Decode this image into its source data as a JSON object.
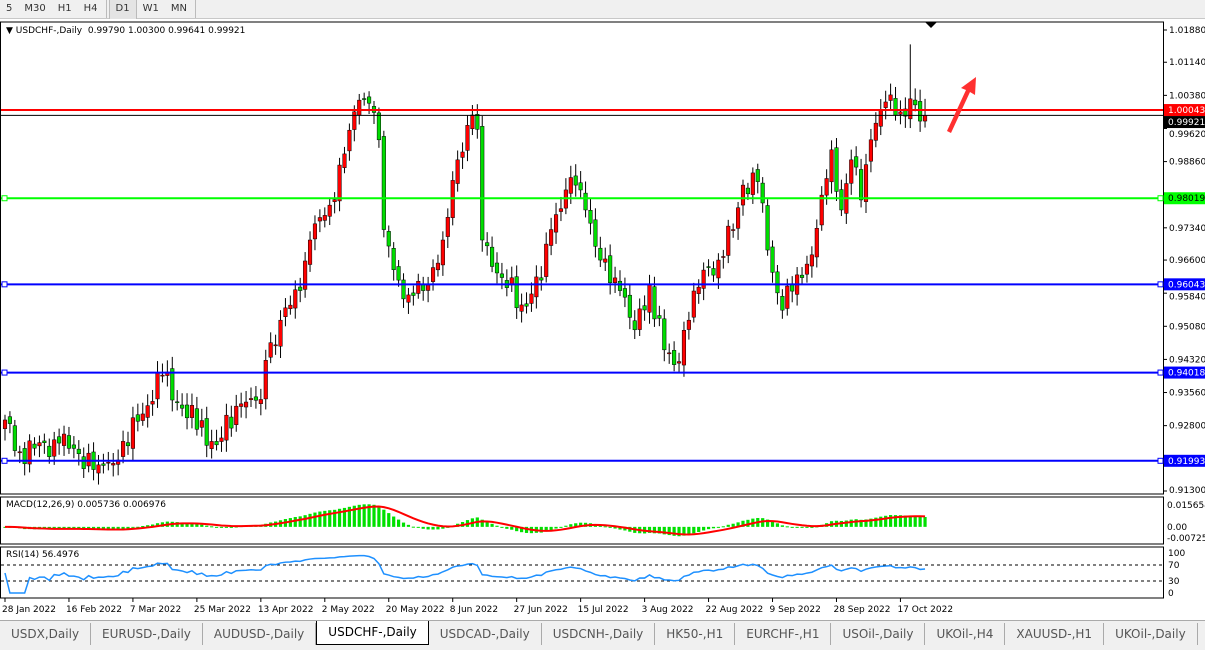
{
  "toolbar": {
    "timeframes": [
      "5",
      "M30",
      "H1",
      "H4",
      "D1",
      "W1",
      "MN"
    ],
    "active": "D1"
  },
  "header": {
    "symbol": "USDCHF-,Daily",
    "open": "0.99790",
    "high": "1.00300",
    "low": "0.99641",
    "close": "0.99921"
  },
  "indicators": {
    "macd_label": "MACD(12,26,9) 0.005736 0.006976",
    "rsi_label": "RSI(14) 56.4976"
  },
  "colors": {
    "bull": "#ff0000",
    "bear": "#00dd00",
    "macd_hist": "#00e000",
    "macd_signal": "#ff0000",
    "rsi": "#1e90ff",
    "resistance": "#ff0000",
    "support_green": "#00ff00",
    "support_blue": "#0000ff"
  },
  "chart_data": {
    "type": "candlestick",
    "price_axis": {
      "ticks": [
        "1.01880",
        "1.01140",
        "1.00380",
        "0.99620",
        "0.98860",
        "0.97340",
        "0.96600",
        "0.95840",
        "0.95080",
        "0.94320",
        "0.93560",
        "0.92800",
        "0.91300"
      ],
      "range": [
        0.913,
        1.0188
      ]
    },
    "date_ticks": [
      "28 Jan 2022",
      "16 Feb 2022",
      "7 Mar 2022",
      "25 Mar 2022",
      "13 Apr 2022",
      "2 May 2022",
      "20 May 2022",
      "8 Jun 2022",
      "27 Jun 2022",
      "15 Jul 2022",
      "3 Aug 2022",
      "22 Aug 2022",
      "9 Sep 2022",
      "28 Sep 2022",
      "17 Oct 2022"
    ],
    "levels": [
      {
        "price": "1.00043",
        "color": "#ff0000"
      },
      {
        "price": "0.98019",
        "color": "#00ff00"
      },
      {
        "price": "0.96043",
        "color": "#0000ff"
      },
      {
        "price": "0.94018",
        "color": "#0000ff"
      },
      {
        "price": "0.91993",
        "color": "#0000ff"
      }
    ],
    "current_price": "0.99921",
    "close_waypoints": [
      [
        0,
        0.9293
      ],
      [
        3,
        0.922
      ],
      [
        11,
        0.924
      ],
      [
        19,
        0.919
      ],
      [
        23,
        0.9201
      ],
      [
        27,
        0.929
      ],
      [
        32,
        0.9396
      ],
      [
        36,
        0.932
      ],
      [
        43,
        0.9236
      ],
      [
        48,
        0.933
      ],
      [
        52,
        0.934
      ],
      [
        53,
        0.943
      ],
      [
        56,
        0.9522
      ],
      [
        60,
        0.959
      ],
      [
        62,
        0.9706
      ],
      [
        66,
        0.9786
      ],
      [
        68,
        0.9878
      ],
      [
        70,
        0.9958
      ],
      [
        72,
        1.0027
      ],
      [
        74,
        1.002
      ],
      [
        76,
        0.9936
      ],
      [
        77,
        0.973
      ],
      [
        80,
        0.9614
      ],
      [
        82,
        0.958
      ],
      [
        86,
        0.9603
      ],
      [
        89,
        0.9706
      ],
      [
        92,
        0.989
      ],
      [
        95,
        0.9993
      ],
      [
        96,
        0.996
      ],
      [
        97,
        0.9706
      ],
      [
        101,
        0.962
      ],
      [
        105,
        0.9557
      ],
      [
        109,
        0.9614
      ],
      [
        111,
        0.973
      ],
      [
        114,
        0.9821
      ],
      [
        116,
        0.9832
      ],
      [
        118,
        0.9775
      ],
      [
        121,
        0.966
      ],
      [
        125,
        0.959
      ],
      [
        128,
        0.95
      ],
      [
        131,
        0.9603
      ],
      [
        134,
        0.9454
      ],
      [
        136,
        0.942
      ],
      [
        139,
        0.9522
      ],
      [
        142,
        0.9637
      ],
      [
        145,
        0.966
      ],
      [
        148,
        0.973
      ],
      [
        150,
        0.9832
      ],
      [
        153,
        0.984
      ],
      [
        155,
        0.9683
      ],
      [
        158,
        0.9545
      ],
      [
        161,
        0.9626
      ],
      [
        164,
        0.9672
      ],
      [
        166,
        0.9809
      ],
      [
        168,
        0.9913
      ],
      [
        170,
        0.9775
      ],
      [
        172,
        0.989
      ],
      [
        174,
        0.9798
      ],
      [
        176,
        0.9936
      ],
      [
        178,
        1.0004
      ],
      [
        180,
        1.0039
      ],
      [
        182,
        1.0
      ],
      [
        184,
        1.003
      ],
      [
        186,
        0.9979
      ],
      [
        187,
        0.99921
      ]
    ],
    "macd_axis": [
      "0.015654",
      "0.00",
      "-0.007259"
    ],
    "rsi_axis": [
      "100",
      "70",
      "30",
      "0"
    ]
  },
  "tabs": [
    "USDX,Daily",
    "EURUSD-,Daily",
    "AUDUSD-,Daily",
    "USDCHF-,Daily",
    "USDCAD-,Daily",
    "USDCNH-,Daily",
    "HK50-,H1",
    "EURCHF-,H1",
    "USOil-,Daily",
    "UKOil-,H4",
    "XAUUSD-,H1",
    "UKOil-,Daily"
  ],
  "active_tab": "USDCHF-,Daily",
  "tab_scroll": "◂ ▸"
}
